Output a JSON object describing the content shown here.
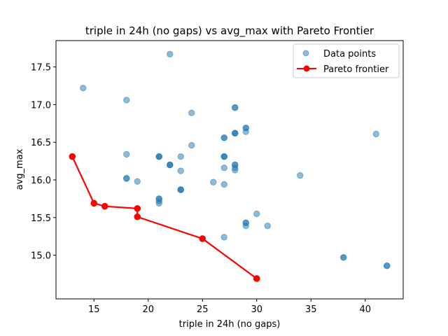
{
  "chart_data": {
    "type": "scatter",
    "title": "triple in 24h (no gaps) vs avg_max with Pareto Frontier",
    "xlabel": "triple in 24h (no gaps)",
    "ylabel": "avg_max",
    "xlim": [
      11.5,
      43.5
    ],
    "ylim": [
      14.42,
      17.85
    ],
    "xticks": [
      15,
      20,
      25,
      30,
      35,
      40
    ],
    "yticks": [
      15.0,
      15.5,
      16.0,
      16.5,
      17.0,
      17.5
    ],
    "grid": false,
    "legend_position": "top-right",
    "series": [
      {
        "name": "Data points",
        "kind": "scatter",
        "color": "#1f77b4",
        "alpha": 0.5,
        "points": [
          [
            14,
            17.22
          ],
          [
            18,
            17.06
          ],
          [
            22,
            17.67
          ],
          [
            24,
            16.89
          ],
          [
            18,
            16.34
          ],
          [
            18,
            16.02
          ],
          [
            18,
            16.02
          ],
          [
            19,
            15.98
          ],
          [
            19,
            15.62
          ],
          [
            19,
            15.51
          ],
          [
            21,
            16.31
          ],
          [
            21,
            16.31
          ],
          [
            21,
            16.31
          ],
          [
            21,
            15.75
          ],
          [
            21,
            15.75
          ],
          [
            21,
            15.72
          ],
          [
            21,
            15.69
          ],
          [
            22,
            16.2
          ],
          [
            22,
            16.2
          ],
          [
            22,
            16.2
          ],
          [
            23,
            16.31
          ],
          [
            23,
            16.12
          ],
          [
            23,
            15.87
          ],
          [
            23,
            15.87
          ],
          [
            23,
            15.87
          ],
          [
            24,
            16.46
          ],
          [
            26,
            15.97
          ],
          [
            27,
            16.56
          ],
          [
            27,
            16.56
          ],
          [
            27,
            16.31
          ],
          [
            27,
            16.31
          ],
          [
            27,
            16.31
          ],
          [
            27,
            16.16
          ],
          [
            27,
            15.94
          ],
          [
            27,
            15.24
          ],
          [
            28,
            16.96
          ],
          [
            28,
            16.96
          ],
          [
            28,
            16.62
          ],
          [
            28,
            16.62
          ],
          [
            28,
            16.62
          ],
          [
            28,
            16.2
          ],
          [
            28,
            16.2
          ],
          [
            28,
            16.16
          ],
          [
            28,
            16.13
          ],
          [
            29,
            16.69
          ],
          [
            29,
            16.69
          ],
          [
            29,
            16.64
          ],
          [
            29,
            15.43
          ],
          [
            29,
            15.43
          ],
          [
            29,
            15.39
          ],
          [
            30,
            15.55
          ],
          [
            31,
            15.39
          ],
          [
            34,
            16.06
          ],
          [
            38,
            14.97
          ],
          [
            38,
            14.97
          ],
          [
            41,
            16.61
          ],
          [
            42,
            14.86
          ],
          [
            42,
            14.86
          ]
        ]
      },
      {
        "name": "Pareto frontier",
        "kind": "line-marker",
        "color": "#ff0000",
        "points": [
          [
            13,
            16.31
          ],
          [
            15,
            15.69
          ],
          [
            16,
            15.65
          ],
          [
            19,
            15.62
          ],
          [
            19,
            15.51
          ],
          [
            25,
            15.22
          ],
          [
            30,
            14.69
          ]
        ]
      }
    ]
  }
}
